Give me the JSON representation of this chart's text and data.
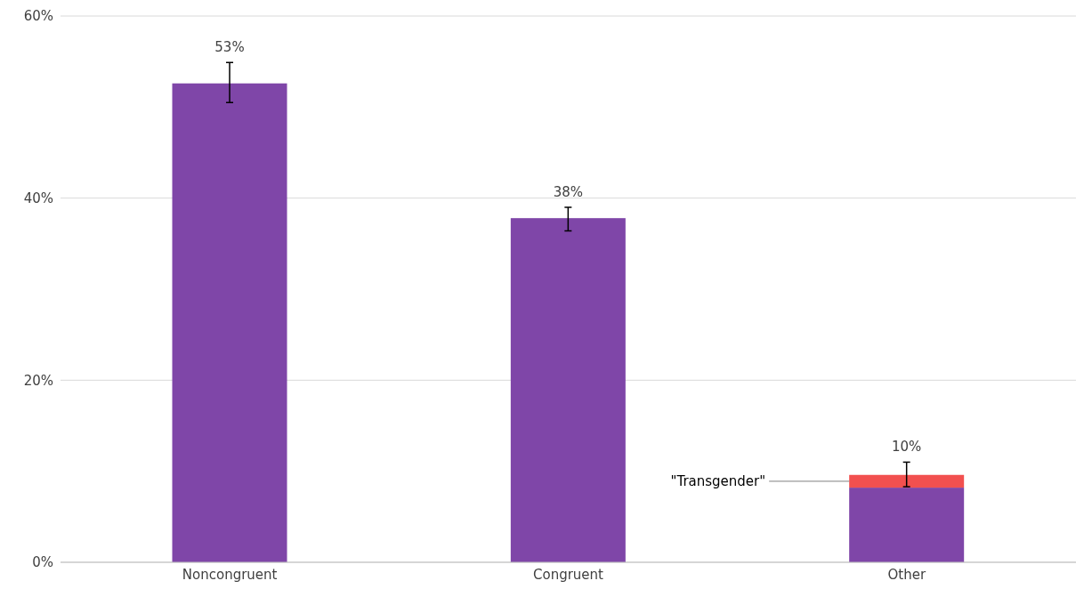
{
  "chart_data": {
    "type": "bar",
    "stacked": true,
    "categories": [
      "Noncongruent",
      "Congruent",
      "Other"
    ],
    "series": [
      {
        "color": "#7f46a8",
        "values": [
          52.6,
          37.8,
          8.2
        ],
        "errors": [
          [
            50.5,
            54.9
          ],
          [
            36.4,
            39.0
          ],
          null
        ]
      },
      {
        "name": "\"Transgender\"",
        "color": "#f2504f",
        "values": [
          null,
          null,
          1.4
        ],
        "errors": [
          null,
          null,
          [
            8.3,
            11.0
          ]
        ]
      }
    ],
    "totals": [
      "53%",
      "38%",
      "10%"
    ],
    "ylim": [
      0,
      60
    ],
    "yticks": [
      {
        "value": 0,
        "label": "0%"
      },
      {
        "value": 20,
        "label": "20%"
      },
      {
        "value": 40,
        "label": "40%"
      },
      {
        "value": 60,
        "label": "60%"
      }
    ],
    "grid": "y",
    "legend": false
  }
}
